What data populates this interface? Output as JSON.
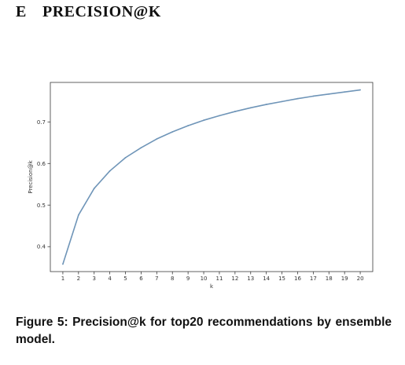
{
  "section": {
    "number": "E",
    "title": "PRECISION@K"
  },
  "figure": {
    "caption_label": "Figure 5:",
    "caption_text": "Precision@k for top20 recommendations by ensemble model."
  },
  "chart_data": {
    "type": "line",
    "title": "",
    "xlabel": "k",
    "ylabel": "Precision@k",
    "x": [
      1,
      2,
      3,
      4,
      5,
      6,
      7,
      8,
      9,
      10,
      11,
      12,
      13,
      14,
      15,
      16,
      17,
      18,
      19,
      20
    ],
    "x_ticks": [
      "1",
      "2",
      "3",
      "4",
      "5",
      "6",
      "7",
      "8",
      "9",
      "10",
      "11",
      "12",
      "13",
      "14",
      "15",
      "16",
      "17",
      "18",
      "19",
      "20"
    ],
    "y_ticks": [
      "0.4",
      "0.5",
      "0.6",
      "0.7"
    ],
    "y_tick_values": [
      0.4,
      0.5,
      0.6,
      0.7
    ],
    "xlim": [
      0.2,
      20.8
    ],
    "ylim": [
      0.34,
      0.795
    ],
    "grid": false,
    "legend": "none",
    "series": [
      {
        "values": [
          0.358,
          0.476,
          0.54,
          0.582,
          0.614,
          0.638,
          0.659,
          0.676,
          0.691,
          0.704,
          0.715,
          0.725,
          0.734,
          0.742,
          0.749,
          0.756,
          0.762,
          0.767,
          0.772,
          0.777
        ],
        "color": "#6f95b8"
      }
    ]
  }
}
